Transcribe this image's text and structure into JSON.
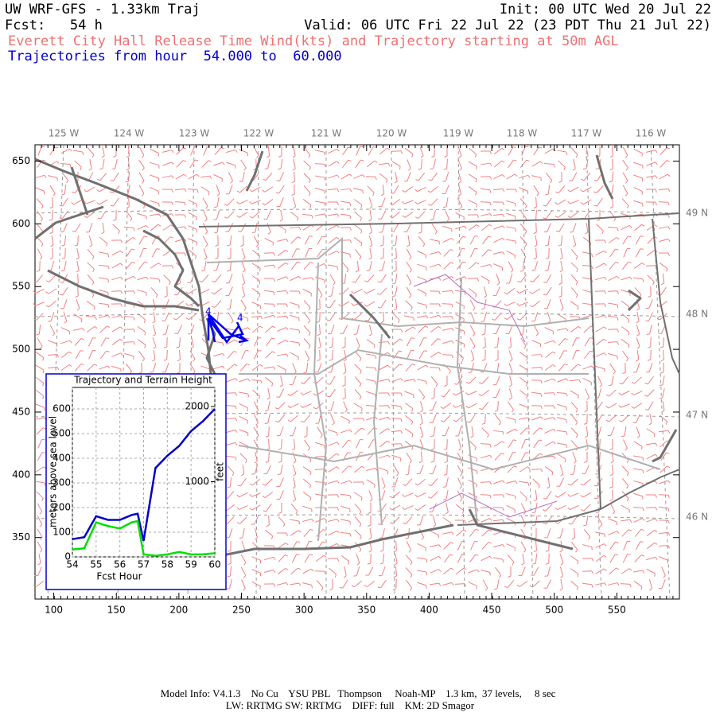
{
  "header": {
    "title": "UW WRF-GFS - 1.33km Traj",
    "init": "Init: 00 UTC Wed 20 Jul 22",
    "fcst": "Fcst:   54 h",
    "valid": "Valid: 06 UTC Fri 22 Jul 22 (23 PDT Thu 21 Jul 22)",
    "subtitle": "Everett City Hall Release Time Wind(kts) and Trajectory starting at 50m AGL",
    "traj_range": "Trajectories from hour  54.000 to  60.000"
  },
  "map": {
    "xlim": [
      85,
      600
    ],
    "xticks": [
      100,
      150,
      200,
      250,
      300,
      350,
      400,
      450,
      500,
      550
    ],
    "ylim": [
      301,
      663
    ],
    "yticks": [
      350,
      400,
      450,
      500,
      550,
      600,
      650
    ],
    "lon_labels": [
      "125 W",
      "124 W",
      "123 W",
      "122 W",
      "121 W",
      "120 W",
      "119 W",
      "118 W",
      "117 W",
      "116 W"
    ],
    "lat_labels": [
      "49 N",
      "48 N",
      "47 N",
      "46 N"
    ]
  },
  "chart_data": {
    "type": "line",
    "title": "Trajectory and Terrain Height",
    "xlabel": "Fcst Hour",
    "ylabel": "meters above sea level",
    "y2label": "feet",
    "x": [
      54,
      54.5,
      55,
      55.5,
      56,
      56.5,
      56.75,
      57,
      57.5,
      58,
      58.5,
      59,
      59.5,
      60
    ],
    "series": [
      {
        "color": "#0000cc",
        "values": [
          72,
          80,
          165,
          150,
          150,
          170,
          175,
          65,
          360,
          410,
          450,
          510,
          550,
          600
        ]
      },
      {
        "color": "#00e000",
        "values": [
          30,
          35,
          140,
          125,
          115,
          140,
          145,
          10,
          5,
          10,
          20,
          10,
          10,
          15
        ]
      }
    ],
    "xlim": [
      54,
      60
    ],
    "xticks": [
      54,
      55,
      56,
      57,
      58,
      59,
      60
    ],
    "ylim": [
      0,
      687
    ],
    "yticks": [
      0,
      100,
      200,
      300,
      400,
      500,
      600
    ],
    "y2lim": [
      0,
      2254
    ],
    "y2ticks": [
      1000,
      2000
    ],
    "grid": true
  },
  "footer": {
    "line1": "Model Info: V4.1.3    No Cu    YSU PBL   Thompson     Noah-MP    1.3 km,  37 levels,     8 sec",
    "line2": "LW: RRTMG SW: RRTMG    DIFF: full    KM: 2D Smagor"
  }
}
